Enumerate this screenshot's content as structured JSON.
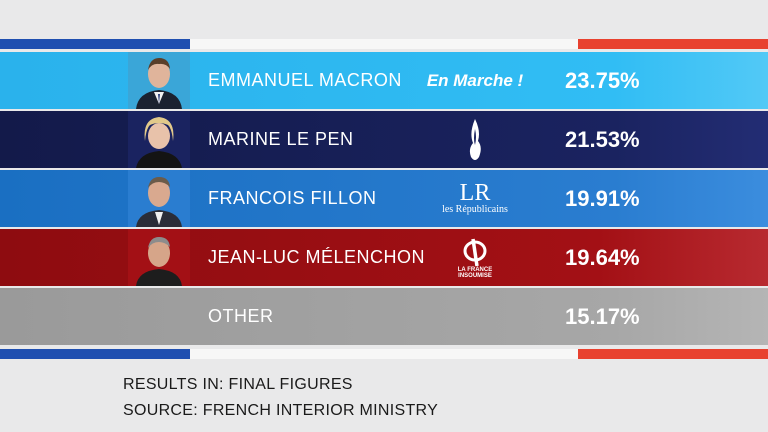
{
  "rows": [
    {
      "name": "EMMANUEL MACRON",
      "party": "En Marche !",
      "pct": "23.75%",
      "color": "#31bdf4"
    },
    {
      "name": "MARINE LE PEN",
      "party": "",
      "pct": "21.53%",
      "color": "#1a2360"
    },
    {
      "name": "FRANCOIS FILLON",
      "party_mark": "LR",
      "party_sub": "les Républicains",
      "pct": "19.91%",
      "color": "#2a7dd0"
    },
    {
      "name": "JEAN-LUC MÉLENCHON",
      "party_sub": "LA FRANCE INSOUMISE",
      "pct": "19.64%",
      "color": "#a31015"
    },
    {
      "name": "OTHER",
      "pct": "15.17%",
      "color": "#a7a7a7"
    }
  ],
  "footer": {
    "line1": "RESULTS IN: FINAL FIGURES",
    "line2": "SOURCE: FRENCH INTERIOR MINISTRY"
  }
}
